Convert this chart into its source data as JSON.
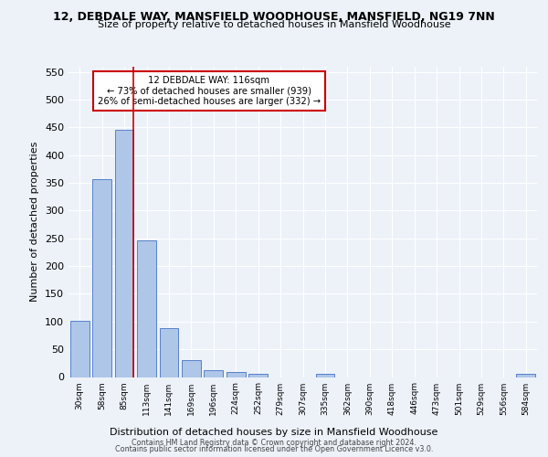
{
  "title_line1": "12, DEBDALE WAY, MANSFIELD WOODHOUSE, MANSFIELD, NG19 7NN",
  "title_line2": "Size of property relative to detached houses in Mansfield Woodhouse",
  "xlabel": "Distribution of detached houses by size in Mansfield Woodhouse",
  "ylabel": "Number of detached properties",
  "footer_line1": "Contains HM Land Registry data © Crown copyright and database right 2024.",
  "footer_line2": "Contains public sector information licensed under the Open Government Licence v3.0.",
  "annotation_line1": "12 DEBDALE WAY: 116sqm",
  "annotation_line2": "← 73% of detached houses are smaller (939)",
  "annotation_line3": "26% of semi-detached houses are larger (332) →",
  "bar_labels": [
    "30sqm",
    "58sqm",
    "85sqm",
    "113sqm",
    "141sqm",
    "169sqm",
    "196sqm",
    "224sqm",
    "252sqm",
    "279sqm",
    "307sqm",
    "335sqm",
    "362sqm",
    "390sqm",
    "418sqm",
    "446sqm",
    "473sqm",
    "501sqm",
    "529sqm",
    "556sqm",
    "584sqm"
  ],
  "bar_values": [
    101,
    356,
    446,
    247,
    88,
    30,
    13,
    9,
    6,
    0,
    0,
    5,
    0,
    0,
    0,
    0,
    0,
    0,
    0,
    0,
    5
  ],
  "bar_color": "#aec6e8",
  "bar_edge_color": "#4472c4",
  "vline_x_index": 2,
  "vline_color": "#cc0000",
  "ylim": [
    0,
    560
  ],
  "yticks": [
    0,
    50,
    100,
    150,
    200,
    250,
    300,
    350,
    400,
    450,
    500,
    550
  ],
  "bg_color": "#edf2f9",
  "plot_bg_color": "#edf2f9",
  "annotation_box_facecolor": "white",
  "annotation_box_edgecolor": "#cc0000",
  "grid_color": "#ffffff"
}
